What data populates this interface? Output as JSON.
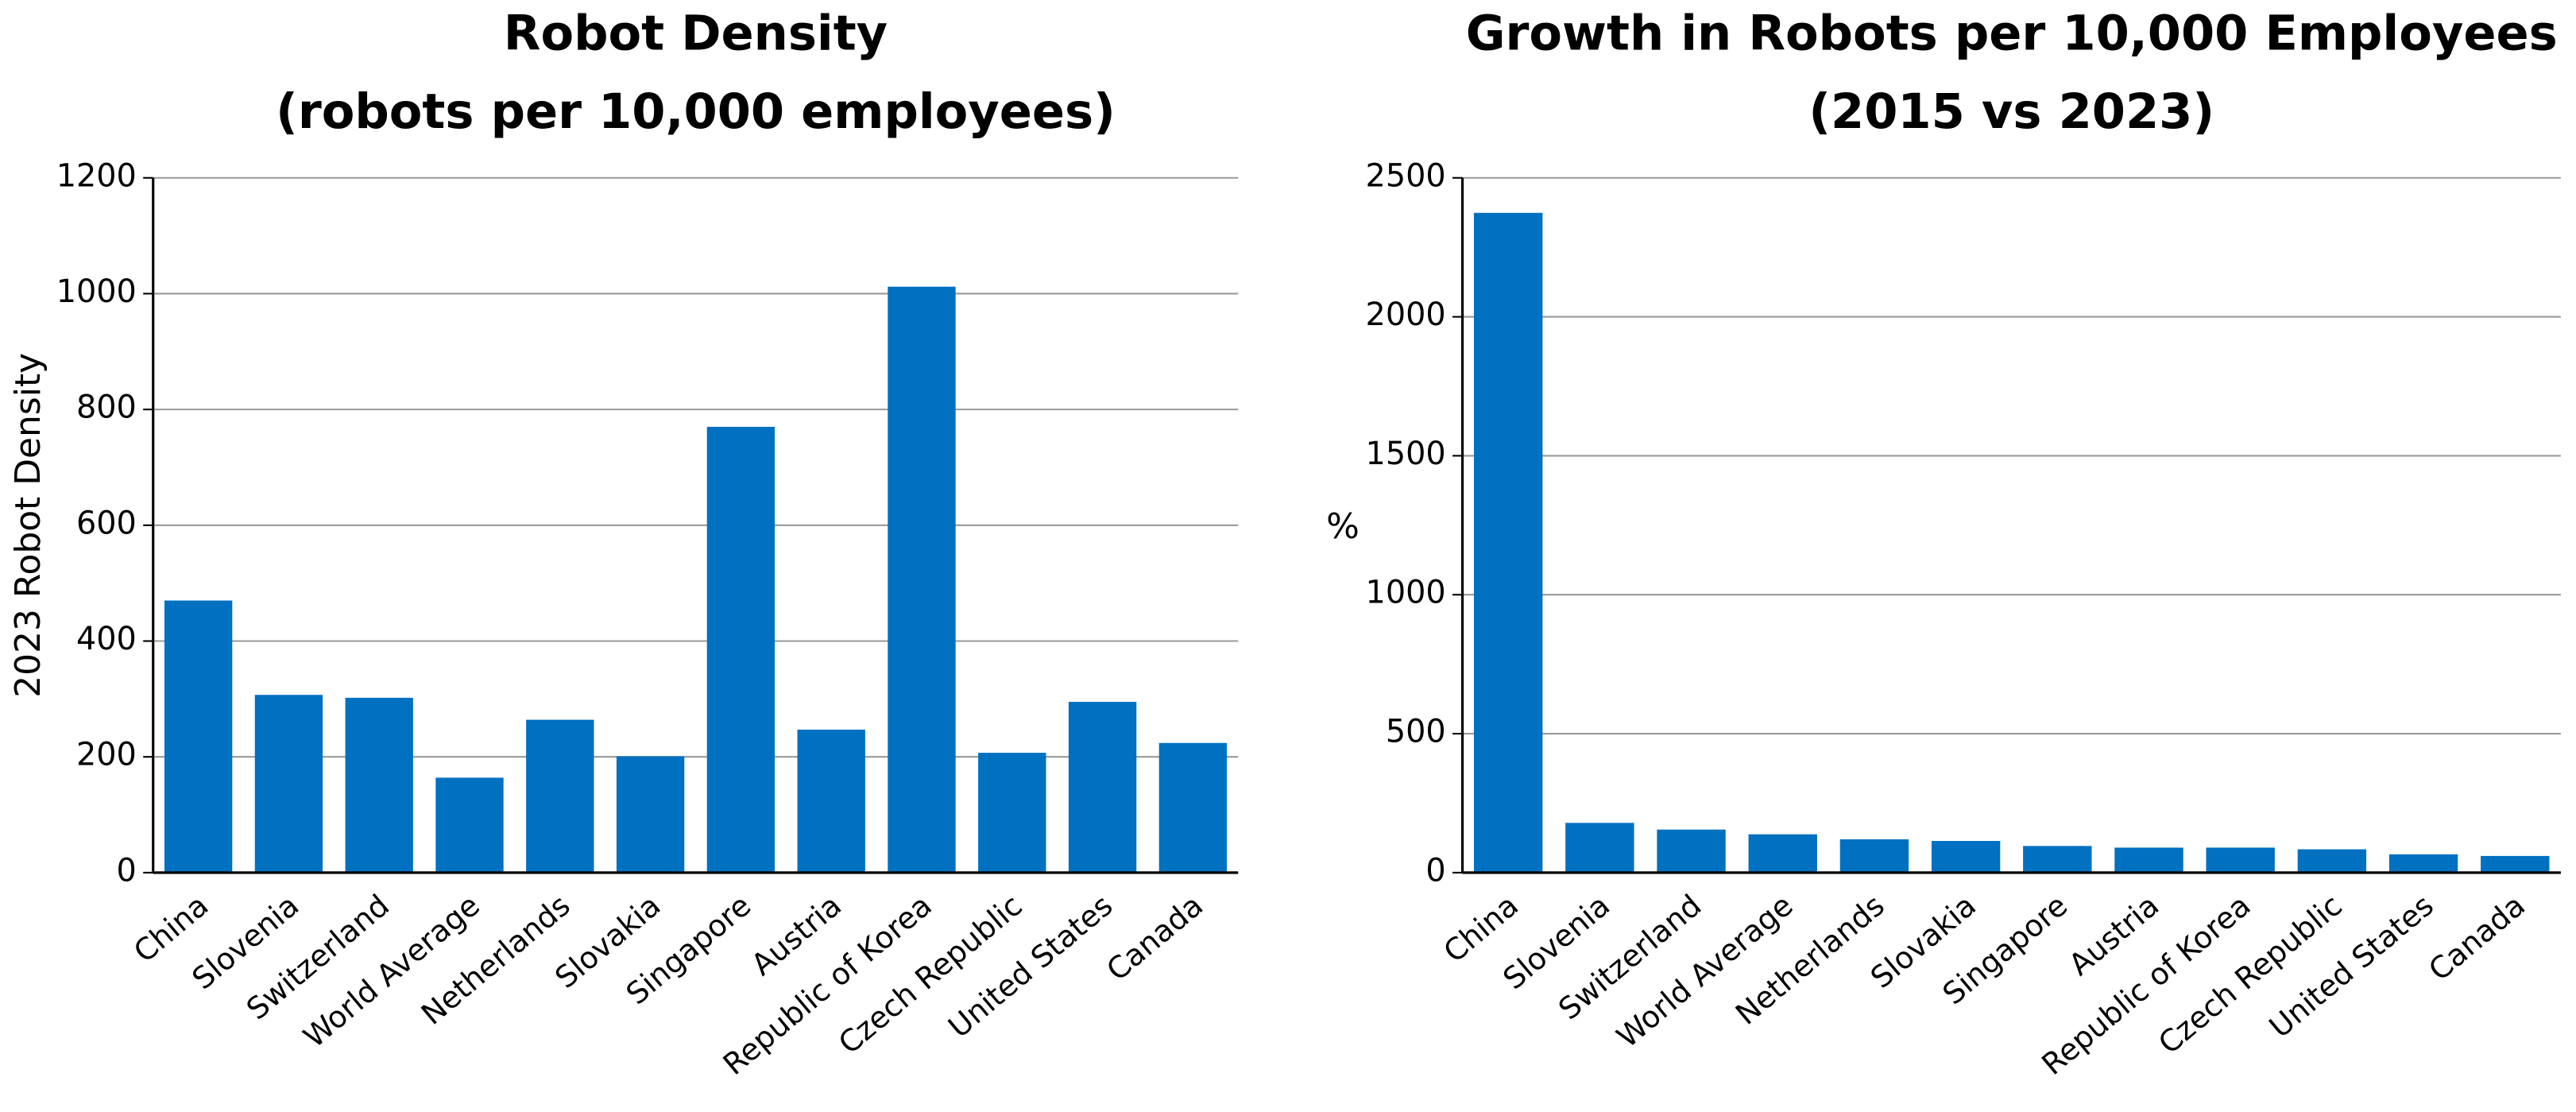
{
  "chart_data": [
    {
      "type": "bar",
      "title": [
        "Robot Density",
        "(robots per 10,000 employees)"
      ],
      "ylabel": "2023 Robot Density",
      "categories": [
        "China",
        "Slovenia",
        "Switzerland",
        "World Average",
        "Netherlands",
        "Slovakia",
        "Singapore",
        "Austria",
        "Republic of Korea",
        "Czech Republic",
        "United States",
        "Canada"
      ],
      "values": [
        470,
        307,
        302,
        164,
        264,
        201,
        770,
        247,
        1012,
        207,
        295,
        224
      ],
      "color": "#0070c0",
      "ylim": [
        0,
        1200
      ],
      "yticks": [
        0,
        200,
        400,
        600,
        800,
        1000,
        1200
      ],
      "grid": true
    },
    {
      "type": "bar",
      "title": [
        "Growth in Robots per 10,000 Employees",
        "(2015 vs 2023)"
      ],
      "ylabel": "%",
      "categories": [
        "China",
        "Slovenia",
        "Switzerland",
        "World Average",
        "Netherlands",
        "Slovakia",
        "Singapore",
        "Austria",
        "Republic of Korea",
        "Czech Republic",
        "United States",
        "Canada"
      ],
      "values": [
        2374,
        179,
        155,
        138,
        120,
        114,
        96,
        90,
        90,
        84,
        66,
        60
      ],
      "color": "#0070c0",
      "ylim": [
        0,
        2500
      ],
      "yticks": [
        0,
        500,
        1000,
        1500,
        2000,
        2500
      ],
      "grid": true
    }
  ]
}
